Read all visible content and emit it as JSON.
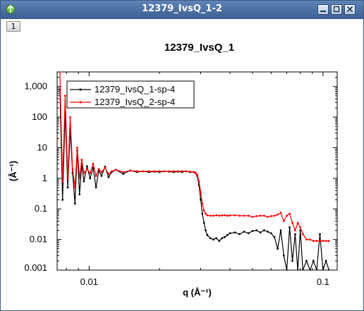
{
  "window": {
    "title": "12379_IvsQ_1-2",
    "tab_label": "1",
    "controls": [
      "minimize-icon",
      "maximize-icon",
      "close-icon"
    ]
  },
  "colors": {
    "titlebar": "#4a70a4",
    "series_1": "#000000",
    "series_2": "#ff0000"
  },
  "chart_data": {
    "type": "line",
    "title": "12379_IvsQ_1",
    "xlabel": "q (Å⁻¹)",
    "ylabel": "(Å⁻¹)",
    "xscale": "log",
    "yscale": "log",
    "xlim": [
      0.0073,
      0.115
    ],
    "ylim": [
      0.001,
      3000
    ],
    "xticks": [
      0.01,
      0.1
    ],
    "xtick_labels": [
      "0.01",
      "0.1"
    ],
    "yticks": [
      0.001,
      0.01,
      0.1,
      1,
      10,
      100,
      1000
    ],
    "ytick_labels": [
      "0.001",
      "0.01",
      "0.1",
      "1",
      "10",
      "100",
      "1,000"
    ],
    "legend_position": "top-left",
    "grid": false,
    "series": [
      {
        "name": "12379_IvsQ_1-sp-4",
        "color": "#000000",
        "x": [
          0.0075,
          0.0077,
          0.0079,
          0.0081,
          0.0083,
          0.0085,
          0.0087,
          0.0089,
          0.0091,
          0.0093,
          0.0095,
          0.0098,
          0.0101,
          0.0104,
          0.0107,
          0.011,
          0.0113,
          0.0117,
          0.0121,
          0.0125,
          0.013,
          0.014,
          0.015,
          0.016,
          0.017,
          0.018,
          0.019,
          0.02,
          0.021,
          0.022,
          0.023,
          0.024,
          0.025,
          0.026,
          0.027,
          0.028,
          0.0285,
          0.029,
          0.0295,
          0.03,
          0.0305,
          0.031,
          0.0315,
          0.032,
          0.033,
          0.034,
          0.035,
          0.036,
          0.037,
          0.038,
          0.039,
          0.04,
          0.042,
          0.044,
          0.046,
          0.048,
          0.05,
          0.052,
          0.054,
          0.056,
          0.058,
          0.06,
          0.062,
          0.064,
          0.066,
          0.068,
          0.07,
          0.072,
          0.074,
          0.076,
          0.078,
          0.08,
          0.082,
          0.085,
          0.088,
          0.091,
          0.094,
          0.097,
          0.1,
          0.103,
          0.106
        ],
        "y": [
          800,
          0.2,
          150,
          0.5,
          40,
          1.5,
          0.15,
          8,
          0.3,
          3,
          0.8,
          2.5,
          1,
          2.2,
          0.5,
          1.8,
          1.2,
          2.4,
          1.1,
          1.6,
          1.9,
          1.4,
          1.8,
          1.6,
          1.7,
          1.6,
          1.65,
          1.6,
          1.7,
          1.65,
          1.6,
          1.65,
          1.6,
          1.7,
          1.6,
          1.6,
          1.5,
          1.2,
          0.6,
          0.2,
          0.07,
          0.035,
          0.02,
          0.014,
          0.011,
          0.01,
          0.011,
          0.009,
          0.011,
          0.012,
          0.014,
          0.016,
          0.017,
          0.015,
          0.018,
          0.016,
          0.019,
          0.02,
          0.017,
          0.02,
          0.018,
          0.016,
          0.012,
          0.005,
          0.02,
          0.003,
          0.001,
          0.025,
          0.002,
          0.015,
          0.001,
          0.02,
          0.001,
          0.002,
          0.001,
          0.002,
          0.001,
          0.015,
          0.001,
          0.002,
          0.001
        ]
      },
      {
        "name": "12379_IvsQ_2-sp-4",
        "color": "#ff0000",
        "x": [
          0.0075,
          0.0077,
          0.0079,
          0.0081,
          0.0083,
          0.0085,
          0.0087,
          0.0089,
          0.0091,
          0.0093,
          0.0095,
          0.0098,
          0.0101,
          0.0104,
          0.0107,
          0.011,
          0.0113,
          0.0117,
          0.0121,
          0.0125,
          0.013,
          0.014,
          0.015,
          0.016,
          0.017,
          0.018,
          0.019,
          0.02,
          0.021,
          0.022,
          0.023,
          0.024,
          0.025,
          0.026,
          0.027,
          0.028,
          0.0285,
          0.029,
          0.0295,
          0.03,
          0.0305,
          0.031,
          0.0315,
          0.032,
          0.033,
          0.034,
          0.035,
          0.036,
          0.037,
          0.038,
          0.039,
          0.04,
          0.042,
          0.044,
          0.046,
          0.048,
          0.05,
          0.052,
          0.054,
          0.056,
          0.058,
          0.06,
          0.062,
          0.064,
          0.066,
          0.068,
          0.07,
          0.072,
          0.074,
          0.076,
          0.078,
          0.08,
          0.082,
          0.085,
          0.088,
          0.091,
          0.094,
          0.097,
          0.1,
          0.103,
          0.106
        ],
        "y": [
          3000,
          0.8,
          500,
          1,
          100,
          2,
          0.5,
          10,
          1,
          4,
          1.5,
          2,
          1.5,
          3,
          1.2,
          2,
          1.6,
          2.2,
          1.4,
          1.7,
          1.9,
          1.6,
          1.8,
          1.7,
          1.7,
          1.7,
          1.7,
          1.7,
          1.7,
          1.7,
          1.7,
          1.7,
          1.7,
          1.7,
          1.65,
          1.6,
          1.55,
          1.3,
          0.8,
          0.35,
          0.15,
          0.09,
          0.07,
          0.062,
          0.06,
          0.06,
          0.062,
          0.06,
          0.061,
          0.062,
          0.06,
          0.061,
          0.062,
          0.06,
          0.06,
          0.06,
          0.055,
          0.058,
          0.06,
          0.06,
          0.055,
          0.058,
          0.06,
          0.065,
          0.075,
          0.04,
          0.06,
          0.07,
          0.035,
          0.02,
          0.035,
          0.025,
          0.015,
          0.01,
          0.01,
          0.009,
          0.009,
          0.009,
          0.009,
          0.009,
          0.009
        ]
      }
    ]
  }
}
